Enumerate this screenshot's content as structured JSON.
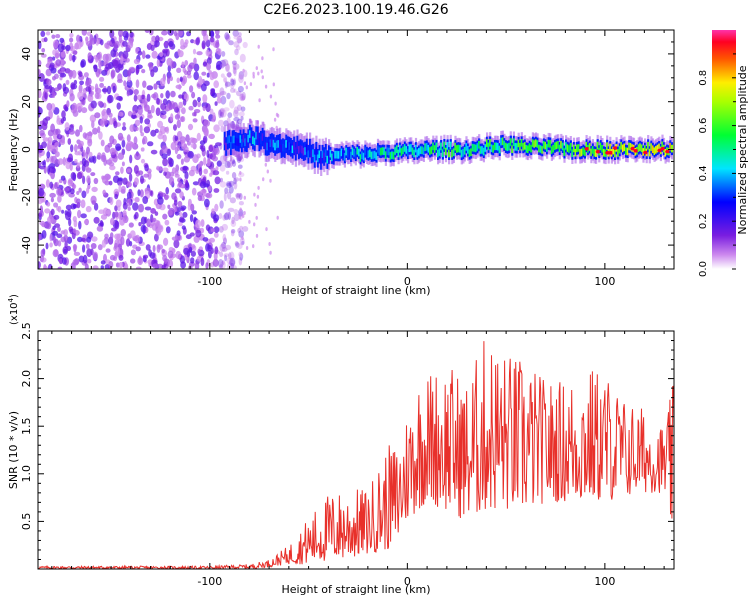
{
  "title": "C2E6.2023.100.19.46.G26",
  "chart_data": [
    {
      "type": "heatmap",
      "name": "spectrogram",
      "xlabel": "Height of straight line (km)",
      "ylabel": "Frequency (Hz)",
      "xlim": [
        -187,
        135
      ],
      "ylim": [
        -50,
        50
      ],
      "x_ticks": [
        -100,
        0,
        100
      ],
      "y_ticks": [
        -40,
        -20,
        0,
        20,
        40
      ],
      "grid": false,
      "colorbar": {
        "label": "Normalized spectral amplitude",
        "range": [
          0,
          1
        ],
        "ticks": [
          "0.0",
          "0.2",
          "0.4",
          "0.6",
          "0.8"
        ],
        "colormap": [
          "#ffffff",
          "#8a2be2",
          "#0000ff",
          "#00ffff",
          "#00ff00",
          "#ffff00",
          "#ff0000",
          "#ff00ff"
        ]
      },
      "noise_region": {
        "x_range": [
          -187,
          -82
        ],
        "freq_range": [
          -50,
          50
        ],
        "amplitude_range": [
          0.05,
          0.25
        ]
      },
      "signal_trace": {
        "x": [
          -92,
          -85,
          -78,
          -72,
          -65,
          -58,
          -50,
          -45,
          -40,
          -30,
          -20,
          -10,
          0,
          10,
          20,
          30,
          40,
          50,
          60,
          70,
          80,
          90,
          100,
          110,
          120,
          133
        ],
        "freq": [
          3,
          4,
          5,
          3,
          2,
          1,
          -1,
          -3,
          -3,
          -2,
          -2,
          -1,
          -1,
          0,
          0,
          0,
          1,
          2,
          1,
          1,
          0,
          0,
          0,
          0,
          0,
          0
        ],
        "amplitude": [
          0.35,
          0.4,
          0.45,
          0.4,
          0.45,
          0.4,
          0.35,
          0.4,
          0.45,
          0.5,
          0.55,
          0.6,
          0.6,
          0.65,
          0.7,
          0.65,
          0.7,
          0.7,
          0.75,
          0.8,
          0.8,
          0.85,
          0.9,
          0.9,
          0.95,
          0.95
        ]
      }
    },
    {
      "type": "line",
      "name": "snr",
      "xlabel": "Height of straight line (km)",
      "ylabel": "SNR (10 * v/v)",
      "y_multiplier": "(x10",
      "y_multiplier_exp": "4",
      "xlim": [
        -187,
        135
      ],
      "ylim": [
        0,
        2.5
      ],
      "x_ticks": [
        -100,
        0,
        100
      ],
      "y_ticks": [
        0.5,
        1.0,
        1.5,
        2.0,
        2.5
      ],
      "y_tick_labels": [
        "0.5",
        "1.0",
        "1.5",
        "2.0",
        "2.5"
      ],
      "grid": false,
      "color": "#e8302a",
      "envelope": {
        "x": [
          -187,
          -100,
          -80,
          -70,
          -60,
          -50,
          -40,
          -30,
          -20,
          -10,
          -5,
          0,
          5,
          10,
          20,
          30,
          40,
          50,
          60,
          70,
          80,
          90,
          100,
          110,
          120,
          130,
          135
        ],
        "low": [
          0.0,
          0.0,
          0.0,
          0.02,
          0.05,
          0.05,
          0.08,
          0.1,
          0.15,
          0.2,
          0.25,
          0.5,
          0.6,
          0.7,
          0.6,
          0.5,
          0.6,
          0.6,
          0.6,
          0.7,
          0.7,
          0.7,
          0.7,
          0.75,
          0.8,
          0.8,
          0.3
        ],
        "high": [
          0.03,
          0.03,
          0.05,
          0.1,
          0.25,
          0.55,
          0.8,
          0.85,
          0.85,
          1.3,
          1.35,
          1.7,
          2.05,
          2.1,
          2.2,
          2.0,
          2.5,
          2.3,
          2.2,
          2.0,
          2.0,
          2.15,
          2.1,
          1.8,
          1.7,
          1.5,
          2.0
        ]
      }
    }
  ]
}
